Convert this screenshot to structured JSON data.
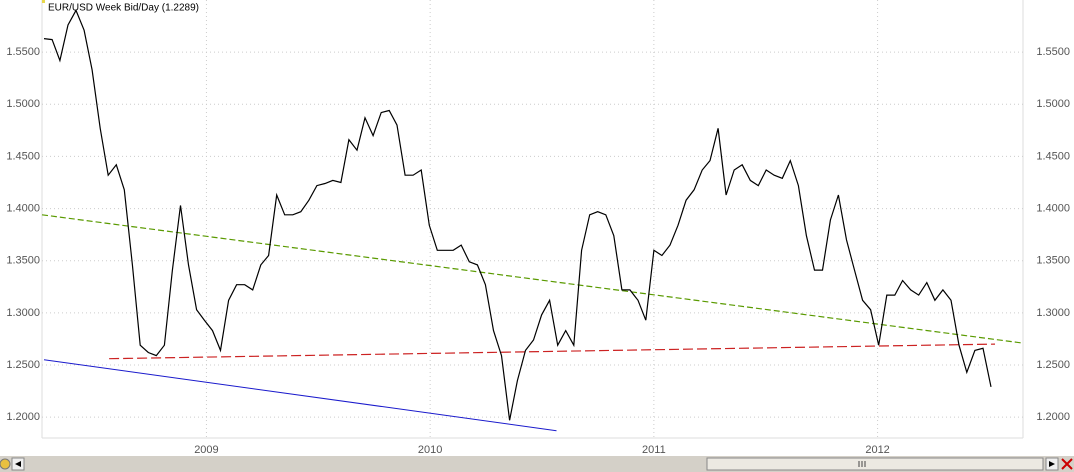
{
  "chart_data": {
    "type": "line",
    "title": "EUR/USD Week Bid/Day (1.2289)",
    "color": "#000000",
    "grid": true,
    "xlim": [
      2008.265,
      2012.65
    ],
    "ylim": [
      1.18,
      1.6
    ],
    "xticks": [
      2009,
      2010,
      2011,
      2012
    ],
    "yticks": [
      {
        "value": 1.2,
        "label": "1.2000"
      },
      {
        "value": 1.25,
        "label": "1.2500"
      },
      {
        "value": 1.3,
        "label": "1.3000"
      },
      {
        "value": 1.35,
        "label": "1.3500"
      },
      {
        "value": 1.4,
        "label": "1.4000"
      },
      {
        "value": 1.45,
        "label": "1.4500"
      },
      {
        "value": 1.5,
        "label": "1.5000"
      },
      {
        "value": 1.55,
        "label": "1.5500"
      }
    ],
    "x": [
      2008.274,
      2008.31,
      2008.345,
      2008.381,
      2008.417,
      2008.453,
      2008.489,
      2008.525,
      2008.561,
      2008.597,
      2008.633,
      2008.669,
      2008.704,
      2008.74,
      2008.776,
      2008.812,
      2008.848,
      2008.884,
      2008.92,
      2008.956,
      2008.991,
      2009.027,
      2009.063,
      2009.099,
      2009.135,
      2009.171,
      2009.207,
      2009.243,
      2009.278,
      2009.314,
      2009.35,
      2009.386,
      2009.422,
      2009.458,
      2009.494,
      2009.53,
      2009.565,
      2009.601,
      2009.637,
      2009.673,
      2009.709,
      2009.745,
      2009.781,
      2009.817,
      2009.852,
      2009.888,
      2009.924,
      2009.96,
      2009.996,
      2010.032,
      2010.068,
      2010.103,
      2010.139,
      2010.175,
      2010.211,
      2010.247,
      2010.283,
      2010.319,
      2010.355,
      2010.39,
      2010.426,
      2010.462,
      2010.498,
      2010.534,
      2010.57,
      2010.606,
      2010.642,
      2010.677,
      2010.713,
      2010.749,
      2010.785,
      2010.821,
      2010.857,
      2010.893,
      2010.929,
      2010.964,
      2011.0,
      2011.036,
      2011.072,
      2011.108,
      2011.144,
      2011.18,
      2011.216,
      2011.251,
      2011.287,
      2011.323,
      2011.359,
      2011.395,
      2011.431,
      2011.467,
      2011.502,
      2011.538,
      2011.574,
      2011.61,
      2011.646,
      2011.682,
      2011.718,
      2011.754,
      2011.789,
      2011.825,
      2011.861,
      2011.897,
      2011.933,
      2011.969,
      2012.005,
      2012.041,
      2012.077,
      2012.112,
      2012.148,
      2012.184,
      2012.22,
      2012.256,
      2012.292,
      2012.328,
      2012.364,
      2012.399,
      2012.435,
      2012.471,
      2012.507
    ],
    "values": [
      1.563,
      1.562,
      1.542,
      1.576,
      1.59,
      1.571,
      1.533,
      1.477,
      1.432,
      1.442,
      1.418,
      1.346,
      1.269,
      1.262,
      1.259,
      1.269,
      1.341,
      1.403,
      1.346,
      1.303,
      1.293,
      1.283,
      1.264,
      1.312,
      1.327,
      1.327,
      1.322,
      1.346,
      1.355,
      1.413,
      1.394,
      1.394,
      1.397,
      1.408,
      1.422,
      1.424,
      1.427,
      1.425,
      1.466,
      1.456,
      1.487,
      1.47,
      1.492,
      1.494,
      1.48,
      1.432,
      1.432,
      1.437,
      1.384,
      1.36,
      1.36,
      1.36,
      1.365,
      1.349,
      1.346,
      1.327,
      1.283,
      1.259,
      1.197,
      1.235,
      1.264,
      1.274,
      1.298,
      1.312,
      1.269,
      1.283,
      1.269,
      1.36,
      1.394,
      1.397,
      1.394,
      1.374,
      1.322,
      1.322,
      1.312,
      1.293,
      1.36,
      1.355,
      1.365,
      1.384,
      1.408,
      1.418,
      1.437,
      1.446,
      1.477,
      1.413,
      1.437,
      1.442,
      1.427,
      1.422,
      1.437,
      1.432,
      1.429,
      1.446,
      1.422,
      1.374,
      1.341,
      1.341,
      1.389,
      1.413,
      1.37,
      1.341,
      1.312,
      1.303,
      1.269,
      1.317,
      1.317,
      1.331,
      1.322,
      1.317,
      1.329,
      1.312,
      1.322,
      1.312,
      1.269,
      1.243,
      1.264,
      1.266,
      1.229
    ],
    "lines": [
      {
        "x": [
          2008.265,
          2012.65
        ],
        "values": [
          1.394,
          1.271
        ],
        "color": "#5a9a00",
        "dash": true
      },
      {
        "x": [
          2008.565,
          2012.525
        ],
        "values": [
          1.256,
          1.27
        ],
        "color": "#cc2222",
        "dash": true
      },
      {
        "x": [
          2008.274,
          2010.565
        ],
        "values": [
          1.255,
          1.187
        ],
        "color": "#1a1acc",
        "dash": false
      }
    ]
  }
}
